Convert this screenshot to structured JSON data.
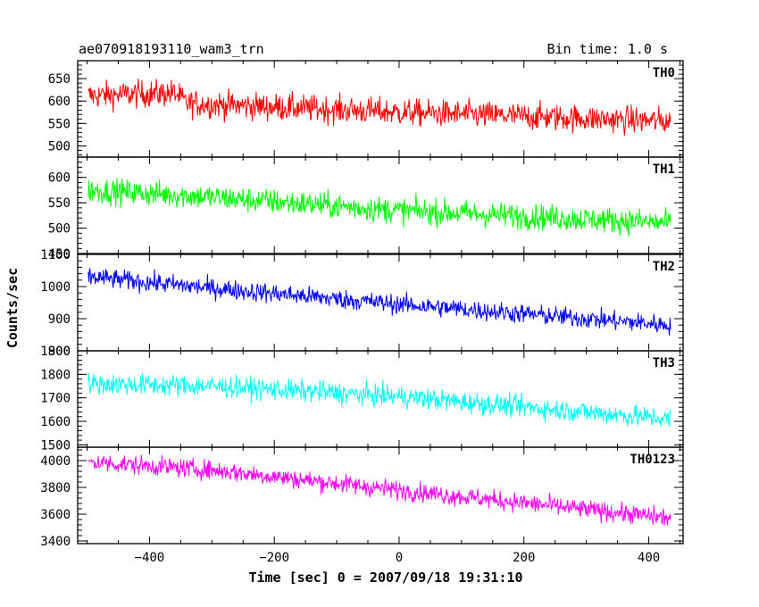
{
  "chart_data": {
    "type": "line",
    "title_left": "ae070918193110_wam3_trn",
    "title_right": "Bin time: 1.0 s",
    "xlabel": "Time [sec] 0 = 2007/09/18 19:31:10",
    "ylabel": "Counts/sec",
    "xlim": [
      -515,
      455
    ],
    "x_range": [
      -498,
      435
    ],
    "x_ticks": [
      -400,
      -200,
      0,
      200,
      400
    ],
    "x_tick_labels": [
      "−400",
      "−200",
      "0",
      "200",
      "400"
    ],
    "grid": false,
    "legend": "none",
    "panels": [
      {
        "name": "TH0",
        "color": "#ff0000",
        "ylim": [
          475,
          690
        ],
        "yticks": [
          500,
          550,
          600,
          650
        ],
        "trend": [
          [
            -498,
            612
          ],
          [
            -360,
            618
          ],
          [
            -340,
            595
          ],
          [
            0,
            575
          ],
          [
            435,
            555
          ]
        ],
        "noise": 30
      },
      {
        "name": "TH1",
        "color": "#00ff00",
        "ylim": [
          450,
          640
        ],
        "yticks": [
          450,
          500,
          550,
          600
        ],
        "trend": [
          [
            -498,
            575
          ],
          [
            -350,
            565
          ],
          [
            0,
            535
          ],
          [
            435,
            510
          ]
        ],
        "noise": 25
      },
      {
        "name": "TH2",
        "color": "#0000ff",
        "ylim": [
          800,
          1100
        ],
        "yticks": [
          800,
          900,
          1000,
          1100
        ],
        "trend": [
          [
            -498,
            1030
          ],
          [
            -300,
            995
          ],
          [
            0,
            945
          ],
          [
            100,
            930
          ],
          [
            435,
            880
          ]
        ],
        "noise": 30
      },
      {
        "name": "TH3",
        "color": "#00ffff",
        "ylim": [
          1490,
          1900
        ],
        "yticks": [
          1500,
          1600,
          1700,
          1800,
          1900
        ],
        "trend": [
          [
            -498,
            1760
          ],
          [
            -300,
            1750
          ],
          [
            0,
            1705
          ],
          [
            435,
            1610
          ]
        ],
        "noise": 45
      },
      {
        "name": "TH0123",
        "color": "#ff00ff",
        "ylim": [
          3380,
          4100
        ],
        "yticks": [
          3400,
          3600,
          3800,
          4000
        ],
        "trend": [
          [
            -498,
            3990
          ],
          [
            -300,
            3930
          ],
          [
            0,
            3780
          ],
          [
            435,
            3570
          ]
        ],
        "noise": 70
      }
    ]
  }
}
